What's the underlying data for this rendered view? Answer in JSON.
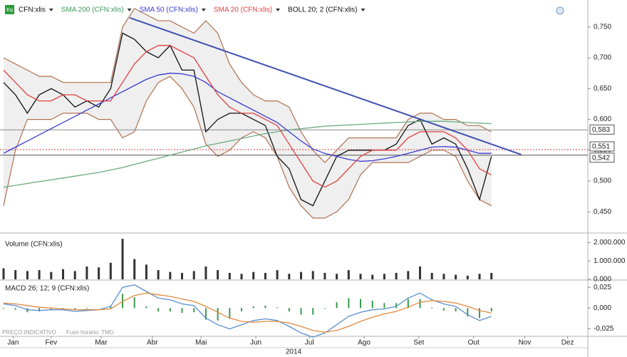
{
  "chart_data": [
    {
      "type": "line",
      "x": [
        0,
        1,
        2,
        3,
        4,
        5,
        6,
        7,
        8,
        9,
        10,
        11,
        12,
        13,
        14,
        15,
        16,
        17,
        18,
        19,
        20,
        21,
        22,
        23,
        24,
        25,
        26,
        27,
        28,
        29,
        30,
        31,
        32,
        33,
        34,
        35,
        36,
        37,
        38,
        39,
        40,
        41
      ],
      "xlim": [
        -0.3,
        49.1
      ],
      "ylim": [
        0.418,
        0.788
      ],
      "yticks": [
        {
          "value": 0.45,
          "label": "0,450"
        },
        {
          "value": 0.5,
          "label": "0,500"
        },
        {
          "value": 0.55,
          "label": "0,550"
        },
        {
          "value": 0.6,
          "label": "0,600"
        },
        {
          "value": 0.65,
          "label": "0,650"
        },
        {
          "value": 0.7,
          "label": "0,700"
        },
        {
          "value": 0.75,
          "label": "0,750"
        }
      ],
      "series": [
        {
          "name": "CFN:xlis",
          "color": "#111111",
          "values": [
            0.66,
            0.64,
            0.61,
            0.64,
            0.65,
            0.64,
            0.62,
            0.63,
            0.62,
            0.65,
            0.74,
            0.73,
            0.71,
            0.7,
            0.72,
            0.68,
            0.68,
            0.58,
            0.6,
            0.61,
            0.61,
            0.6,
            0.59,
            0.54,
            0.52,
            0.47,
            0.46,
            0.5,
            0.54,
            0.55,
            0.55,
            0.55,
            0.55,
            0.56,
            0.59,
            0.6,
            0.56,
            0.57,
            0.56,
            0.52,
            0.47,
            0.54
          ]
        },
        {
          "name": "SMA 200 (CFN:xlis)",
          "color": "#6aaa80",
          "values": [
            0.49,
            0.493,
            0.496,
            0.499,
            0.502,
            0.505,
            0.508,
            0.511,
            0.514,
            0.518,
            0.522,
            0.527,
            0.532,
            0.537,
            0.542,
            0.547,
            0.552,
            0.557,
            0.561,
            0.565,
            0.569,
            0.573,
            0.577,
            0.58,
            0.583,
            0.585,
            0.587,
            0.589,
            0.59,
            0.591,
            0.592,
            0.593,
            0.594,
            0.595,
            0.596,
            0.597,
            0.597,
            0.597,
            0.596,
            0.595,
            0.594,
            0.593
          ]
        },
        {
          "name": "SMA 50 (CFN:xlis)",
          "color": "#3a3ad0",
          "values": [
            0.545,
            0.555,
            0.565,
            0.575,
            0.585,
            0.595,
            0.605,
            0.615,
            0.625,
            0.635,
            0.645,
            0.655,
            0.665,
            0.672,
            0.675,
            0.674,
            0.67,
            0.66,
            0.645,
            0.635,
            0.625,
            0.615,
            0.605,
            0.595,
            0.58,
            0.565,
            0.552,
            0.545,
            0.54,
            0.535,
            0.532,
            0.533,
            0.536,
            0.54,
            0.545,
            0.55,
            0.555,
            0.556,
            0.555,
            0.55,
            0.545,
            0.545
          ]
        },
        {
          "name": "SMA 20 (CFN:xlis)",
          "color": "#e04040",
          "values": [
            0.68,
            0.66,
            0.64,
            0.63,
            0.63,
            0.64,
            0.64,
            0.63,
            0.63,
            0.63,
            0.66,
            0.69,
            0.71,
            0.72,
            0.72,
            0.71,
            0.7,
            0.67,
            0.64,
            0.62,
            0.61,
            0.61,
            0.6,
            0.59,
            0.56,
            0.53,
            0.5,
            0.49,
            0.5,
            0.52,
            0.54,
            0.55,
            0.55,
            0.55,
            0.57,
            0.58,
            0.58,
            0.58,
            0.57,
            0.55,
            0.52,
            0.51
          ]
        }
      ],
      "bands": {
        "name": "BOLL 20; 2 (CFN:xlis)",
        "color": "#b07050",
        "upper": [
          0.7,
          0.69,
          0.68,
          0.67,
          0.67,
          0.66,
          0.66,
          0.66,
          0.66,
          0.66,
          0.75,
          0.78,
          0.77,
          0.76,
          0.76,
          0.75,
          0.74,
          0.76,
          0.74,
          0.69,
          0.66,
          0.64,
          0.63,
          0.63,
          0.62,
          0.58,
          0.55,
          0.53,
          0.55,
          0.57,
          0.57,
          0.57,
          0.57,
          0.57,
          0.6,
          0.61,
          0.61,
          0.6,
          0.6,
          0.59,
          0.59,
          0.58
        ],
        "lower": [
          0.46,
          0.55,
          0.6,
          0.6,
          0.6,
          0.61,
          0.61,
          0.61,
          0.6,
          0.6,
          0.57,
          0.58,
          0.63,
          0.66,
          0.67,
          0.65,
          0.62,
          0.56,
          0.54,
          0.55,
          0.57,
          0.58,
          0.57,
          0.54,
          0.49,
          0.46,
          0.44,
          0.44,
          0.45,
          0.47,
          0.51,
          0.53,
          0.53,
          0.53,
          0.53,
          0.54,
          0.55,
          0.55,
          0.54,
          0.5,
          0.47,
          0.46
        ]
      },
      "trendline": {
        "color": "#4050b0",
        "x": [
          10.6,
          43.5
        ],
        "values": [
          0.765,
          0.543
        ]
      },
      "levels": [
        {
          "value": 0.583,
          "label": "0,583",
          "color": "#888888"
        },
        {
          "value": 0.551,
          "label": "0,551",
          "color": "#e04040"
        },
        {
          "value": 0.542,
          "label": "0,542",
          "color": "#555555"
        }
      ]
    },
    {
      "type": "bar",
      "title": "Volume (CFN:xlis)",
      "color": "#333333",
      "x": [
        0,
        1,
        2,
        3,
        4,
        5,
        6,
        7,
        8,
        9,
        10,
        11,
        12,
        13,
        14,
        15,
        16,
        17,
        18,
        19,
        20,
        21,
        22,
        23,
        24,
        25,
        26,
        27,
        28,
        29,
        30,
        31,
        32,
        33,
        34,
        35,
        36,
        37,
        38,
        39,
        40,
        41
      ],
      "values": [
        600000,
        500000,
        450000,
        500000,
        400000,
        550000,
        450000,
        700000,
        650000,
        900000,
        2200000,
        1100000,
        800000,
        500000,
        400000,
        350000,
        450000,
        700000,
        500000,
        350000,
        300000,
        400000,
        350000,
        500000,
        300000,
        400000,
        450000,
        350000,
        300000,
        500000,
        300000,
        250000,
        300000,
        350000,
        450000,
        700000,
        350000,
        300000,
        250000,
        200000,
        300000,
        350000
      ],
      "ylim": [
        0,
        2400000
      ],
      "yticks": [
        {
          "value": 0,
          "label": "0.000"
        },
        {
          "value": 1000000,
          "label": "1.000.000"
        },
        {
          "value": 2000000,
          "label": "2.000.000"
        }
      ]
    },
    {
      "type": "line",
      "title": "MACD 26; 12; 9 (CFN:xlis)",
      "x": [
        0,
        1,
        2,
        3,
        4,
        5,
        6,
        7,
        8,
        9,
        10,
        11,
        12,
        13,
        14,
        15,
        16,
        17,
        18,
        19,
        20,
        21,
        22,
        23,
        24,
        25,
        26,
        27,
        28,
        29,
        30,
        31,
        32,
        33,
        34,
        35,
        36,
        37,
        38,
        39,
        40,
        41
      ],
      "ylim": [
        -0.034,
        0.032
      ],
      "yticks": [
        {
          "value": -0.025,
          "label": "-0,025"
        },
        {
          "value": 0,
          "label": "0,000"
        },
        {
          "value": 0.025,
          "label": "0,025"
        }
      ],
      "series": [
        {
          "color": "#5a8fd0",
          "values": [
            0.005,
            0.003,
            -0.002,
            -0.003,
            -0.002,
            -0.002,
            -0.004,
            -0.003,
            -0.002,
            0.002,
            0.025,
            0.028,
            0.02,
            0.012,
            0.01,
            0.005,
            0.003,
            -0.012,
            -0.02,
            -0.025,
            -0.02,
            -0.015,
            -0.013,
            -0.015,
            -0.022,
            -0.03,
            -0.035,
            -0.03,
            -0.02,
            -0.01,
            -0.005,
            -0.002,
            -0.001,
            0.002,
            0.012,
            0.018,
            0.01,
            0.005,
            0.002,
            -0.008,
            -0.015,
            -0.01
          ]
        },
        {
          "color": "#e08a40",
          "values": [
            0.006,
            0.005,
            0.003,
            0.001,
            0.0,
            -0.001,
            -0.002,
            -0.002,
            -0.002,
            -0.001,
            0.008,
            0.015,
            0.018,
            0.016,
            0.014,
            0.011,
            0.008,
            0.002,
            -0.005,
            -0.012,
            -0.016,
            -0.017,
            -0.016,
            -0.016,
            -0.018,
            -0.022,
            -0.027,
            -0.029,
            -0.027,
            -0.022,
            -0.016,
            -0.011,
            -0.007,
            -0.004,
            0.001,
            0.007,
            0.009,
            0.008,
            0.006,
            0.002,
            -0.003,
            -0.006
          ]
        }
      ],
      "histogram": {
        "color": "#3a9a4a",
        "values": [
          -0.001,
          -0.002,
          -0.005,
          -0.004,
          -0.002,
          -0.001,
          -0.002,
          -0.001,
          0.0,
          0.003,
          0.017,
          0.013,
          0.002,
          -0.004,
          -0.004,
          -0.006,
          -0.005,
          -0.014,
          -0.015,
          -0.013,
          -0.004,
          0.002,
          0.003,
          0.001,
          -0.004,
          -0.008,
          -0.008,
          -0.001,
          0.007,
          0.012,
          0.011,
          0.009,
          0.006,
          0.006,
          0.011,
          0.011,
          0.001,
          -0.003,
          -0.004,
          -0.01,
          -0.012,
          -0.004
        ]
      },
      "xticks": [
        {
          "value": 0.8,
          "label": "Jan"
        },
        {
          "value": 4.0,
          "label": "Fev"
        },
        {
          "value": 8.2,
          "label": "Mar"
        },
        {
          "value": 12.5,
          "label": "Abr"
        },
        {
          "value": 16.6,
          "label": "Mai"
        },
        {
          "value": 21.2,
          "label": "Jun"
        },
        {
          "value": 25.7,
          "label": "Jul"
        },
        {
          "value": 30.3,
          "label": "Ago"
        },
        {
          "value": 34.9,
          "label": "Set"
        },
        {
          "value": 39.5,
          "label": "Out"
        },
        {
          "value": 43.8,
          "label": "Nov"
        },
        {
          "value": 47.4,
          "label": "Dez"
        }
      ],
      "xlabel": "2014"
    }
  ],
  "footer": {
    "note": "PREÇO INDICATIVO",
    "timezone": "Fuso horário: TMG"
  }
}
